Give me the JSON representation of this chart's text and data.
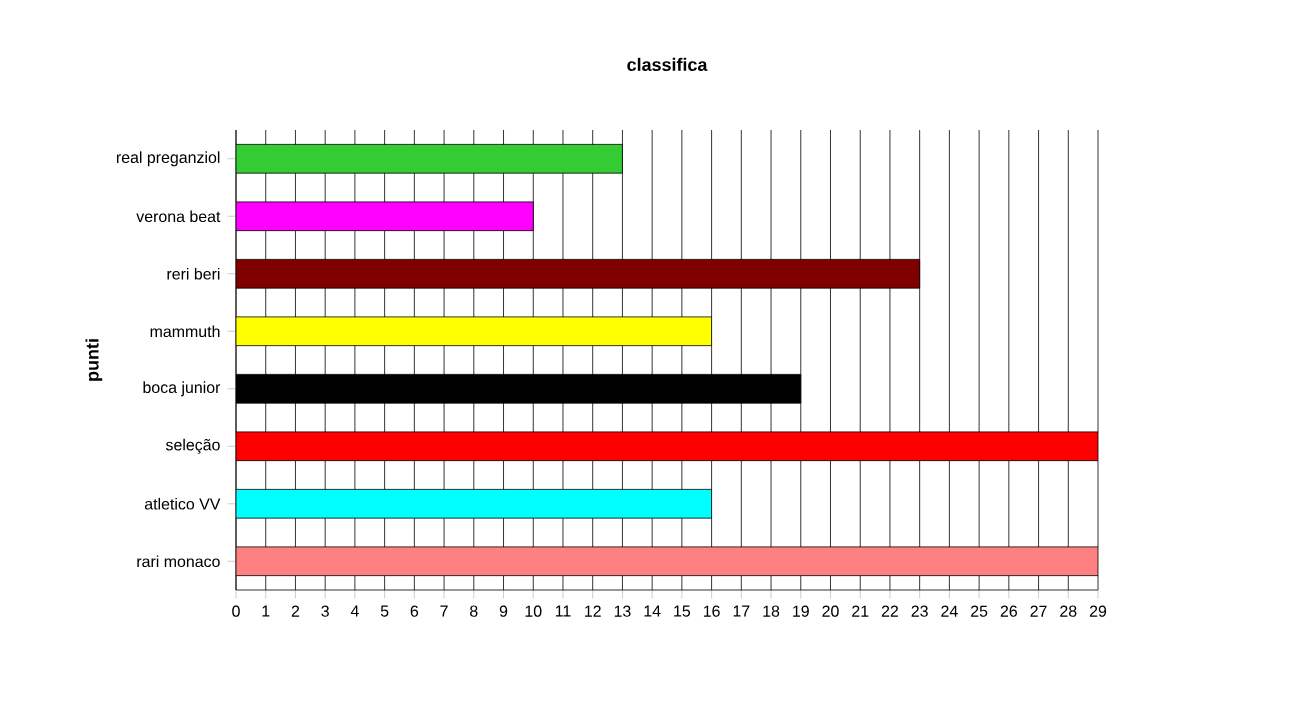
{
  "chart_data": {
    "type": "bar",
    "orientation": "horizontal",
    "title": "classifica",
    "ylabel": "punti",
    "categories": [
      "real preganziol",
      "verona beat",
      "reri beri",
      "mammuth",
      "boca junior",
      "seleção",
      "atletico VV",
      "rari monaco"
    ],
    "values": [
      13,
      10,
      23,
      16,
      19,
      29,
      16,
      29
    ],
    "colors": [
      "#33cc33",
      "#ff00ff",
      "#800000",
      "#ffff00",
      "#000000",
      "#ff0000",
      "#00ffff",
      "#ff8080"
    ],
    "xlim": [
      0,
      29
    ],
    "xticks": [
      0,
      1,
      2,
      3,
      4,
      5,
      6,
      7,
      8,
      9,
      10,
      11,
      12,
      13,
      14,
      15,
      16,
      17,
      18,
      19,
      20,
      21,
      22,
      23,
      24,
      25,
      26,
      27,
      28,
      29
    ],
    "grid": "x"
  }
}
